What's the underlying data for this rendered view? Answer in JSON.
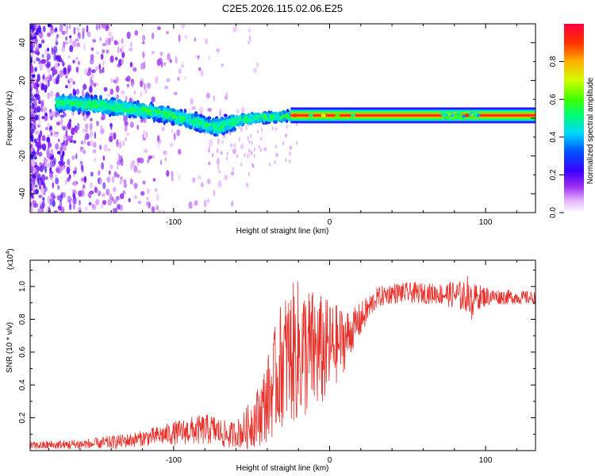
{
  "title": "C2E5.2026.115.02.06.E25",
  "colors": {
    "snr_line": "#e8302a",
    "axis": "#000000"
  },
  "chart_data": [
    {
      "type": "heatmap",
      "name": "spectrogram",
      "xlabel": "Height of straight line (km)",
      "ylabel": "Frequency (Hz)",
      "xlim": [
        -192,
        132
      ],
      "ylim": [
        -50,
        50
      ],
      "x_ticks": [
        {
          "value": -100,
          "label": "-100"
        },
        {
          "value": 0,
          "label": "0"
        },
        {
          "value": 100,
          "label": "100"
        }
      ],
      "y_ticks": [
        {
          "value": -40,
          "label": "-40"
        },
        {
          "value": -20,
          "label": "-20"
        },
        {
          "value": 0,
          "label": "0"
        },
        {
          "value": 20,
          "label": "20"
        },
        {
          "value": 40,
          "label": "40"
        }
      ],
      "ridge": [
        [
          -170,
          8
        ],
        [
          -150,
          7
        ],
        [
          -130,
          5
        ],
        [
          -110,
          3
        ],
        [
          -95,
          0
        ],
        [
          -85,
          -2
        ],
        [
          -72,
          -5
        ],
        [
          -65,
          -3
        ],
        [
          -58,
          -1
        ],
        [
          -50,
          0
        ],
        [
          -40,
          0.5
        ],
        [
          -25,
          1
        ],
        [
          -10,
          1
        ],
        [
          0,
          1
        ],
        [
          20,
          1.5
        ],
        [
          50,
          1.5
        ],
        [
          80,
          1.5
        ],
        [
          100,
          1.5
        ],
        [
          132,
          1.5
        ]
      ],
      "colorbar": {
        "label": "Normalized spectral amplitude",
        "range": [
          0,
          1
        ],
        "ticks": [
          {
            "value": 0.0,
            "label": "0.0"
          },
          {
            "value": 0.2,
            "label": "0.2"
          },
          {
            "value": 0.4,
            "label": "0.4"
          },
          {
            "value": 0.6,
            "label": "0.6"
          },
          {
            "value": 0.8,
            "label": "0.8"
          }
        ]
      }
    },
    {
      "type": "line",
      "name": "snr",
      "xlabel": "Height of straight line (km)",
      "ylabel": "SNR (10 * v/v)",
      "y_multiplier": "(x10",
      "y_multiplier_exp": "4",
      "y_multiplier_close": ")",
      "xlim": [
        -192,
        132
      ],
      "ylim": [
        0,
        1.16
      ],
      "x_ticks": [
        {
          "value": -100,
          "label": "-100"
        },
        {
          "value": 0,
          "label": "0"
        },
        {
          "value": 100,
          "label": "100"
        }
      ],
      "y_ticks": [
        {
          "value": 0.2,
          "label": "0.2"
        },
        {
          "value": 0.4,
          "label": "0.4"
        },
        {
          "value": 0.6,
          "label": "0.6"
        },
        {
          "value": 0.8,
          "label": "0.8"
        },
        {
          "value": 1.0,
          "label": "1.0"
        }
      ],
      "envelope": [
        [
          -192,
          0.03
        ],
        [
          -150,
          0.04
        ],
        [
          -130,
          0.06
        ],
        [
          -110,
          0.09
        ],
        [
          -90,
          0.12
        ],
        [
          -75,
          0.13
        ],
        [
          -65,
          0.09
        ],
        [
          -55,
          0.12
        ],
        [
          -45,
          0.22
        ],
        [
          -38,
          0.35
        ],
        [
          -30,
          0.55
        ],
        [
          -22,
          0.6
        ],
        [
          -15,
          0.6
        ],
        [
          -5,
          0.6
        ],
        [
          0,
          0.62
        ],
        [
          10,
          0.68
        ],
        [
          20,
          0.8
        ],
        [
          30,
          0.93
        ],
        [
          40,
          0.96
        ],
        [
          60,
          0.96
        ],
        [
          80,
          0.95
        ],
        [
          90,
          0.93
        ],
        [
          100,
          0.94
        ],
        [
          132,
          0.93
        ]
      ],
      "noise": [
        [
          -192,
          0.015
        ],
        [
          -120,
          0.03
        ],
        [
          -80,
          0.06
        ],
        [
          -60,
          0.05
        ],
        [
          -45,
          0.12
        ],
        [
          -30,
          0.25
        ],
        [
          -20,
          0.28
        ],
        [
          -5,
          0.22
        ],
        [
          5,
          0.15
        ],
        [
          15,
          0.08
        ],
        [
          30,
          0.04
        ],
        [
          70,
          0.04
        ],
        [
          85,
          0.06
        ],
        [
          95,
          0.05
        ],
        [
          105,
          0.03
        ],
        [
          132,
          0.025
        ]
      ]
    }
  ]
}
